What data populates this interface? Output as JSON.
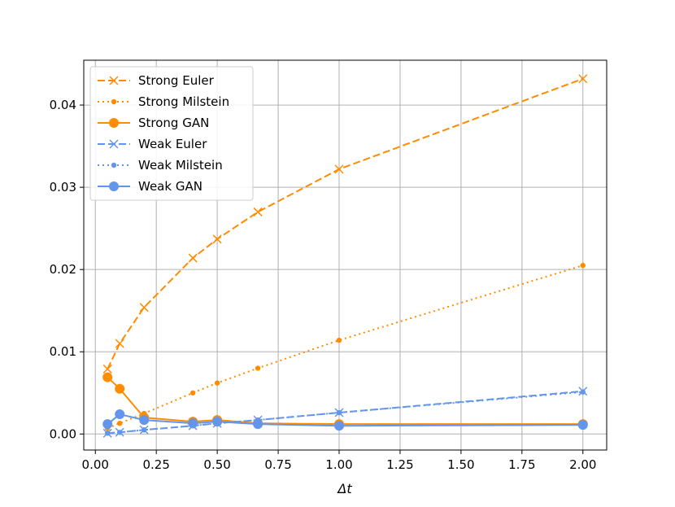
{
  "chart_data": {
    "type": "line",
    "xlabel": "Δt",
    "ylabel": "",
    "xlim": [
      -0.0475,
      2.0975
    ],
    "ylim": [
      -0.00195,
      0.04545
    ],
    "x_ticks": [
      0.0,
      0.25,
      0.5,
      0.75,
      1.0,
      1.25,
      1.5,
      1.75,
      2.0
    ],
    "x_tick_labels": [
      "0.00",
      "0.25",
      "0.50",
      "0.75",
      "1.00",
      "1.25",
      "1.50",
      "1.75",
      "2.00"
    ],
    "y_ticks": [
      0.0,
      0.01,
      0.02,
      0.03,
      0.04
    ],
    "y_tick_labels": [
      "0.00",
      "0.01",
      "0.02",
      "0.03",
      "0.04"
    ],
    "grid": true,
    "legend_position": "top-left",
    "series": [
      {
        "name": "Strong Euler",
        "color": "#ff8c00",
        "linestyle": "dashed",
        "marker": "x",
        "x": [
          0.05,
          0.1,
          0.2,
          0.4,
          0.5,
          0.6667,
          1.0,
          2.0
        ],
        "y": [
          0.0079,
          0.011,
          0.0154,
          0.0214,
          0.0237,
          0.027,
          0.0322,
          0.0432
        ]
      },
      {
        "name": "Strong Milstein",
        "color": "#ff8c00",
        "linestyle": "dotted",
        "marker": "small-dot",
        "x": [
          0.05,
          0.1,
          0.2,
          0.4,
          0.5,
          0.6667,
          1.0,
          2.0
        ],
        "y": [
          0.0007,
          0.0013,
          0.0025,
          0.005,
          0.0062,
          0.008,
          0.0114,
          0.0205
        ]
      },
      {
        "name": "Strong GAN",
        "color": "#ff8c00",
        "linestyle": "solid",
        "marker": "large-dot",
        "x": [
          0.05,
          0.1,
          0.2,
          0.4,
          0.5,
          0.6667,
          1.0,
          2.0
        ],
        "y": [
          0.0069,
          0.0055,
          0.002,
          0.0015,
          0.0017,
          0.0013,
          0.0012,
          0.0012
        ]
      },
      {
        "name": "Weak Euler",
        "color": "#6495ed",
        "linestyle": "dashed",
        "marker": "x",
        "x": [
          0.05,
          0.1,
          0.2,
          0.4,
          0.5,
          0.6667,
          1.0,
          2.0
        ],
        "y": [
          0.0001,
          0.0002,
          0.0005,
          0.001,
          0.0013,
          0.0017,
          0.0026,
          0.0052
        ]
      },
      {
        "name": "Weak Milstein",
        "color": "#6495ed",
        "linestyle": "dotted",
        "marker": "small-dot",
        "x": [
          0.05,
          0.1,
          0.2,
          0.4,
          0.5,
          0.6667,
          1.0,
          2.0
        ],
        "y": [
          0.0001,
          0.0002,
          0.0005,
          0.001,
          0.0013,
          0.0017,
          0.0026,
          0.0051
        ]
      },
      {
        "name": "Weak GAN",
        "color": "#6495ed",
        "linestyle": "solid",
        "marker": "large-dot",
        "x": [
          0.05,
          0.1,
          0.2,
          0.4,
          0.5,
          0.6667,
          1.0,
          2.0
        ],
        "y": [
          0.0012,
          0.0024,
          0.0017,
          0.0013,
          0.0015,
          0.0012,
          0.001,
          0.0011
        ]
      }
    ]
  }
}
